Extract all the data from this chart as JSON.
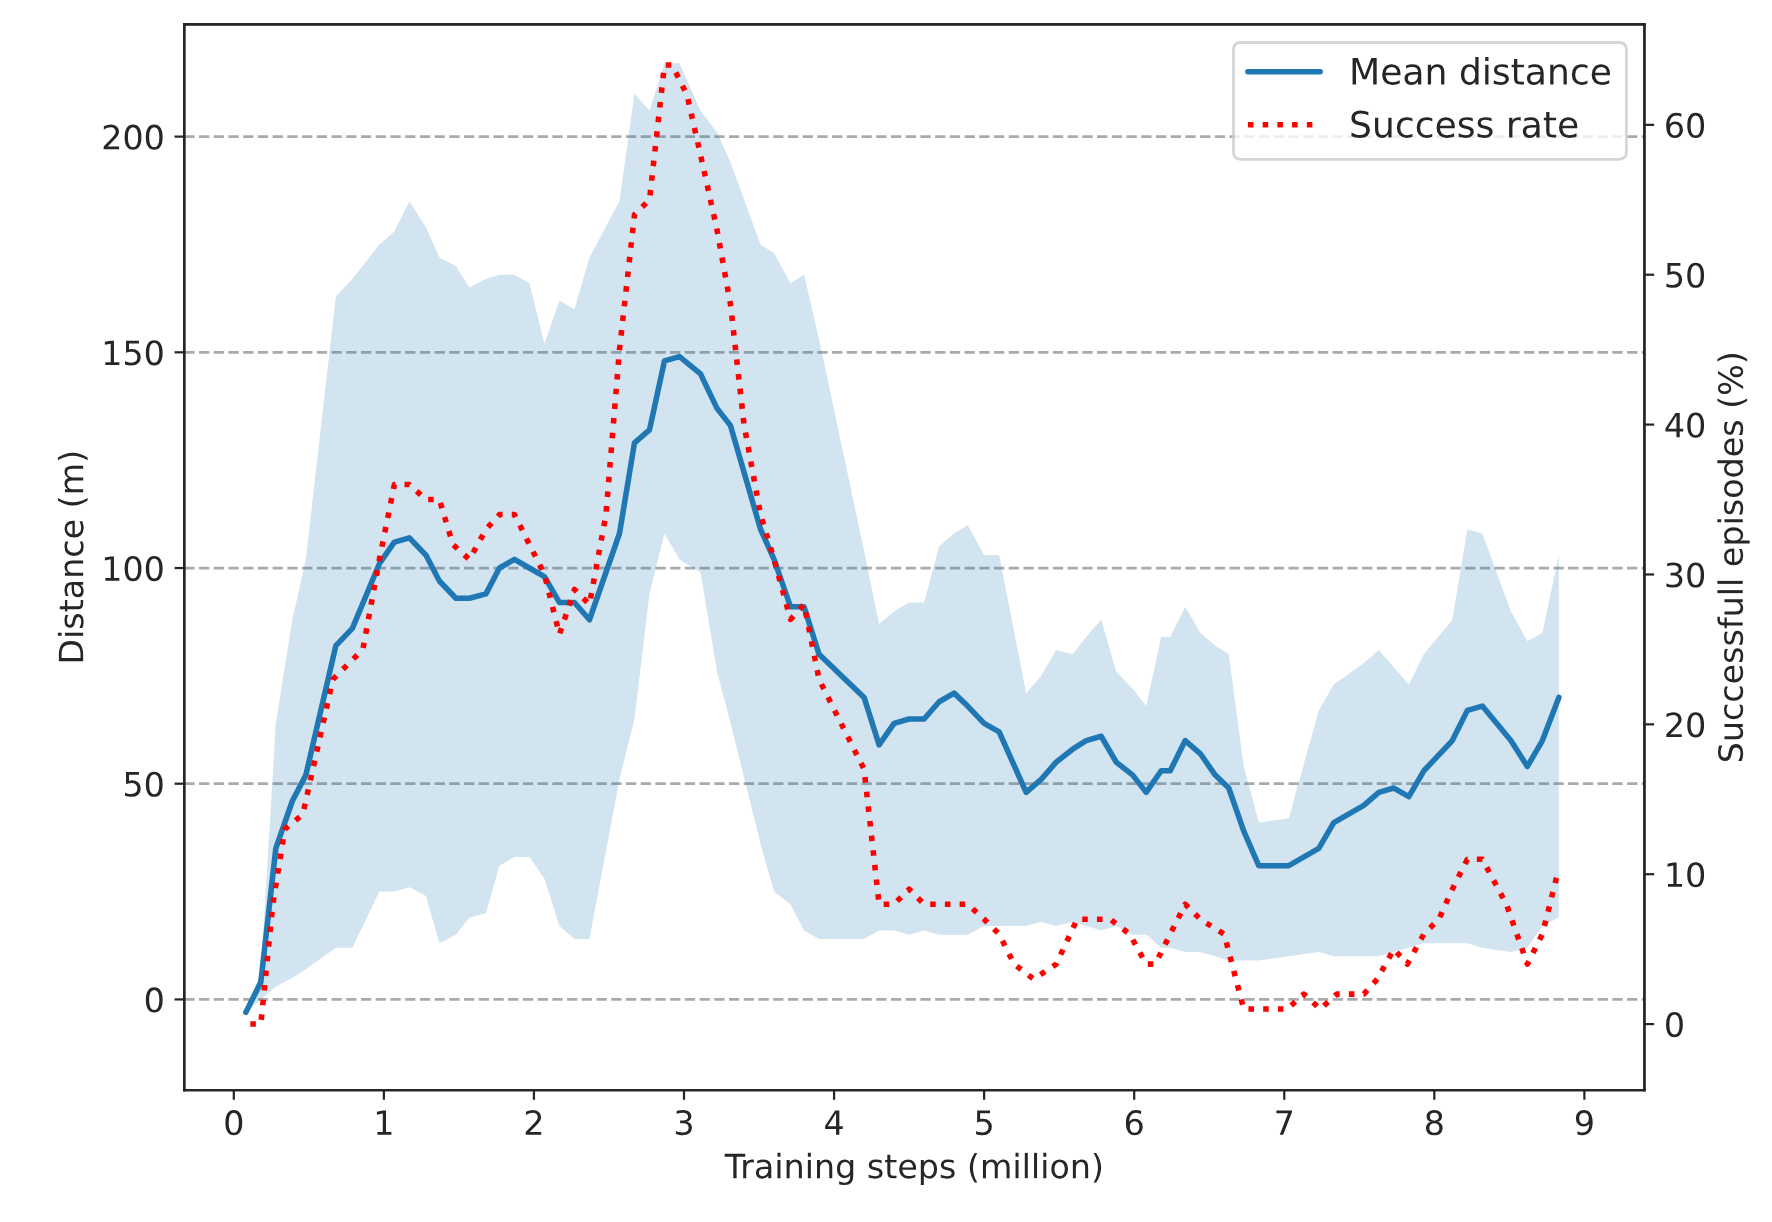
{
  "chart_data": {
    "type": "line",
    "xlabel": "Training steps (million)",
    "ylabel": "Distance (m)",
    "y2label": "Successfull episodes (%)",
    "xlim": [
      -0.33,
      9.4
    ],
    "xticks": [
      0,
      1,
      2,
      3,
      4,
      5,
      6,
      7,
      8,
      9
    ],
    "ylim": [
      -21,
      226
    ],
    "yticks": [
      0,
      50,
      100,
      150,
      200
    ],
    "y2lim": [
      -4.4,
      66.7
    ],
    "y2ticks": [
      0,
      10,
      20,
      30,
      40,
      50,
      60
    ],
    "grid": "y",
    "legend": "top right",
    "series": [
      {
        "name": "Mean distance",
        "color": "#1f77b4",
        "line_style": "solid",
        "x": [
          0.08,
          0.18,
          0.28,
          0.39,
          0.48,
          0.68,
          0.79,
          0.97,
          1.07,
          1.17,
          1.28,
          1.37,
          1.48,
          1.57,
          1.68,
          1.77,
          1.87,
          1.97,
          2.07,
          2.17,
          2.27,
          2.37,
          2.57,
          2.67,
          2.77,
          2.87,
          2.97,
          3.11,
          3.22,
          3.31,
          3.51,
          3.6,
          3.71,
          3.8,
          3.9,
          4.2,
          4.3,
          4.4,
          4.5,
          4.6,
          4.7,
          4.8,
          4.89,
          5.0,
          5.1,
          5.28,
          5.38,
          5.48,
          5.59,
          5.68,
          5.78,
          5.88,
          5.99,
          6.08,
          6.18,
          6.24,
          6.34,
          6.44,
          6.54,
          6.63,
          6.73,
          6.83,
          7.03,
          7.23,
          7.33,
          7.53,
          7.63,
          7.73,
          7.83,
          7.93,
          8.12,
          8.22,
          8.32,
          8.51,
          8.62,
          8.72,
          8.83
        ],
        "values": [
          -3,
          4,
          35,
          46,
          52,
          82,
          86,
          101,
          106,
          107,
          103,
          97,
          93,
          93,
          94,
          100,
          102,
          100,
          98,
          92,
          92,
          88,
          108,
          129,
          132,
          148,
          149,
          145,
          137,
          133,
          109,
          102,
          91,
          91,
          80,
          70,
          59,
          64,
          65,
          65,
          69,
          71,
          68,
          64,
          62,
          48,
          51,
          55,
          58,
          60,
          61,
          55,
          52,
          48,
          53,
          53,
          60,
          57,
          52,
          49,
          39,
          31,
          31,
          35,
          41,
          45,
          48,
          49,
          47,
          53,
          60,
          67,
          68,
          60,
          54,
          60,
          70
        ],
        "lower": [
          -3,
          0,
          3,
          5,
          7,
          12,
          12,
          25,
          25,
          26,
          24,
          13,
          15,
          19,
          20,
          31,
          33,
          33,
          28,
          17,
          14,
          14,
          51,
          65,
          94,
          108,
          102,
          99,
          76,
          64,
          36,
          25,
          22,
          16,
          14,
          14,
          16,
          16,
          15,
          16,
          15,
          15,
          15,
          17,
          17,
          17,
          18,
          17,
          18,
          17,
          16,
          17,
          15,
          15,
          12,
          12,
          11,
          11,
          10,
          9,
          9,
          9,
          10,
          11,
          10,
          10,
          10,
          11,
          12,
          13,
          13,
          13,
          12,
          11,
          12,
          17,
          19
        ],
        "upper": [
          -2,
          6,
          64,
          88,
          102,
          163,
          167,
          175,
          178,
          185,
          179,
          172,
          170,
          165,
          167,
          168,
          168,
          166,
          152,
          162,
          160,
          172,
          185,
          210,
          206,
          217,
          217,
          206,
          201,
          194,
          175,
          173,
          166,
          168,
          153,
          104,
          87,
          90,
          92,
          92,
          105,
          108,
          110,
          103,
          103,
          71,
          75,
          81,
          80,
          84,
          88,
          76,
          72,
          68,
          84,
          84,
          91,
          85,
          82,
          80,
          54,
          41,
          42,
          67,
          73,
          78,
          81,
          77,
          73,
          80,
          88,
          109,
          108,
          90,
          83,
          85,
          103
        ]
      },
      {
        "name": "Success rate",
        "color": "#ff0000",
        "line_style": "dotted",
        "axis": "y2",
        "x": [
          0.11,
          0.18,
          0.26,
          0.34,
          0.46,
          0.66,
          0.86,
          0.97,
          1.07,
          1.17,
          1.28,
          1.37,
          1.46,
          1.57,
          1.68,
          1.77,
          1.87,
          1.97,
          2.07,
          2.17,
          2.27,
          2.37,
          2.48,
          2.57,
          2.67,
          2.77,
          2.87,
          2.92,
          3.02,
          3.11,
          3.22,
          3.31,
          3.4,
          3.51,
          3.6,
          3.71,
          3.8,
          3.9,
          4.0,
          4.1,
          4.2,
          4.3,
          4.4,
          4.5,
          4.6,
          4.7,
          4.8,
          4.89,
          5.0,
          5.1,
          5.2,
          5.33,
          5.48,
          5.62,
          5.73,
          5.84,
          5.97,
          6.08,
          6.14,
          6.24,
          6.34,
          6.44,
          6.6,
          6.73,
          6.88,
          7.02,
          7.13,
          7.24,
          7.35,
          7.53,
          7.62,
          7.73,
          7.82,
          7.93,
          8.03,
          8.12,
          8.22,
          8.32,
          8.48,
          8.62,
          8.72,
          8.82
        ],
        "values": [
          0,
          0,
          8,
          13,
          14,
          23,
          25,
          31,
          36,
          36,
          35,
          35,
          32,
          31,
          33,
          34,
          34,
          32,
          30,
          26,
          29,
          28,
          34,
          45,
          54,
          55,
          64,
          64,
          62,
          58,
          53,
          48,
          40,
          34,
          31,
          27,
          28,
          23,
          21,
          19,
          17,
          8,
          8,
          9,
          8,
          8,
          8,
          8,
          7,
          6,
          4,
          3,
          4,
          7,
          7,
          7,
          6,
          4,
          4,
          6,
          8,
          7,
          6,
          1,
          1,
          1,
          2,
          1,
          2,
          2,
          3,
          5,
          4,
          6,
          7,
          9,
          11,
          11,
          8,
          4,
          6,
          10
        ]
      }
    ]
  }
}
